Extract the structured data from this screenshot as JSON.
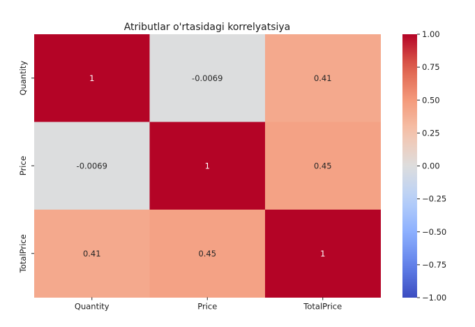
{
  "chart_data": {
    "type": "heatmap",
    "title": "Atributlar o'rtasidagi korrelyatsiya",
    "rows": [
      "Quantity",
      "Price",
      "TotalPrice"
    ],
    "columns": [
      "Quantity",
      "Price",
      "TotalPrice"
    ],
    "values": [
      [
        1,
        -0.0069,
        0.41
      ],
      [
        -0.0069,
        1,
        0.45
      ],
      [
        0.41,
        0.45,
        1
      ]
    ],
    "annotations": [
      [
        "1",
        "-0.0069",
        "0.41"
      ],
      [
        "-0.0069",
        "1",
        "0.45"
      ],
      [
        "0.41",
        "0.45",
        "1"
      ]
    ],
    "colormap": "coolwarm",
    "vmin": -1.0,
    "vmax": 1.0,
    "colorbar_ticks": [
      "1.00",
      "0.75",
      "0.50",
      "0.25",
      "0.00",
      "−0.25",
      "−0.50",
      "−0.75",
      "−1.00"
    ],
    "colorbar_tick_values": [
      1.0,
      0.75,
      0.5,
      0.25,
      0.0,
      -0.25,
      -0.5,
      -0.75,
      -1.0
    ]
  }
}
